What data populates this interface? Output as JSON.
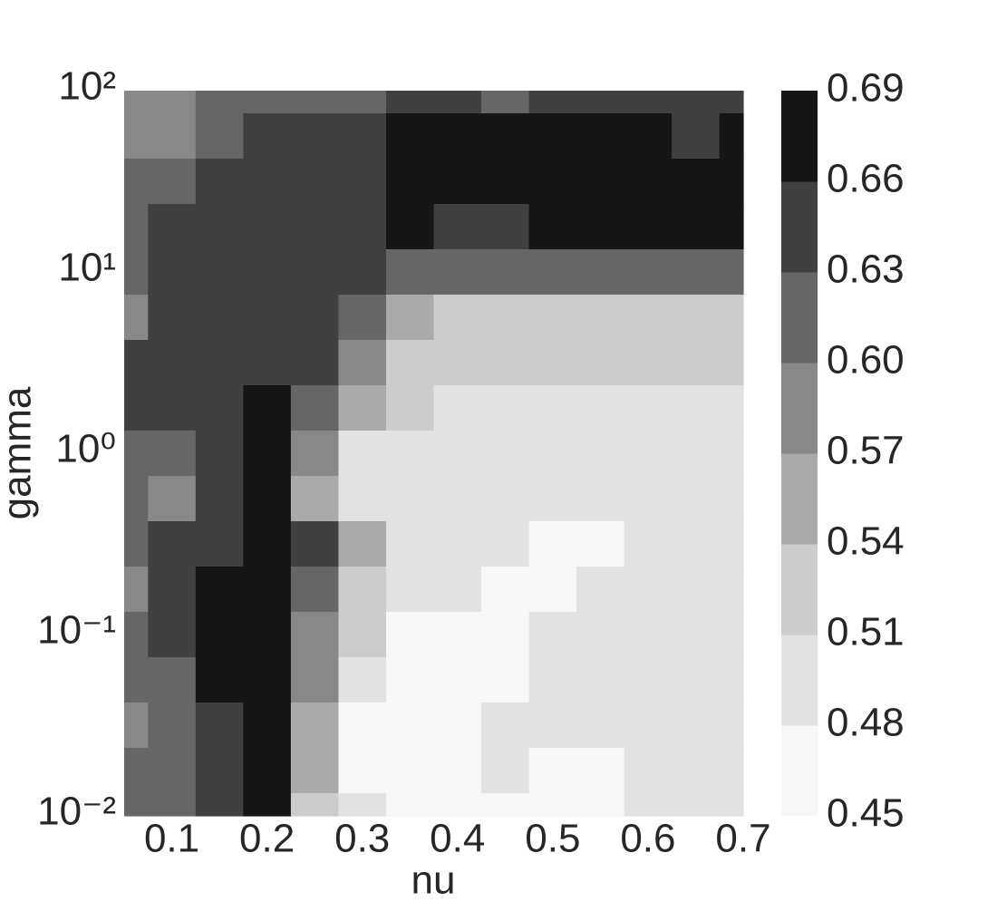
{
  "chart_data": {
    "type": "contourf",
    "xlabel": "nu",
    "ylabel": "gamma",
    "x": [
      0.05,
      0.1,
      0.15,
      0.2,
      0.25,
      0.3,
      0.35,
      0.4,
      0.45,
      0.5,
      0.55,
      0.6,
      0.65,
      0.7
    ],
    "y": [
      100,
      56.23,
      31.62,
      17.78,
      10,
      5.623,
      3.162,
      1.778,
      1,
      0.5623,
      0.3162,
      0.1778,
      0.1,
      0.05623,
      0.03162,
      0.01778,
      0.01
    ],
    "z": [
      [
        0.585,
        0.585,
        0.615,
        0.615,
        0.615,
        0.615,
        0.645,
        0.645,
        0.615,
        0.645,
        0.645,
        0.645,
        0.645,
        0.645
      ],
      [
        0.585,
        0.585,
        0.615,
        0.645,
        0.645,
        0.645,
        0.675,
        0.675,
        0.675,
        0.675,
        0.675,
        0.675,
        0.645,
        0.675
      ],
      [
        0.615,
        0.615,
        0.645,
        0.645,
        0.645,
        0.645,
        0.675,
        0.675,
        0.675,
        0.675,
        0.675,
        0.675,
        0.675,
        0.675
      ],
      [
        0.615,
        0.645,
        0.645,
        0.645,
        0.645,
        0.645,
        0.675,
        0.645,
        0.645,
        0.675,
        0.675,
        0.675,
        0.675,
        0.675
      ],
      [
        0.615,
        0.645,
        0.645,
        0.645,
        0.645,
        0.645,
        0.615,
        0.615,
        0.615,
        0.615,
        0.615,
        0.615,
        0.615,
        0.615
      ],
      [
        0.585,
        0.645,
        0.645,
        0.645,
        0.645,
        0.615,
        0.555,
        0.525,
        0.525,
        0.525,
        0.525,
        0.525,
        0.525,
        0.525
      ],
      [
        0.645,
        0.645,
        0.645,
        0.645,
        0.645,
        0.585,
        0.525,
        0.525,
        0.525,
        0.525,
        0.525,
        0.525,
        0.525,
        0.525
      ],
      [
        0.645,
        0.645,
        0.645,
        0.675,
        0.615,
        0.555,
        0.525,
        0.495,
        0.495,
        0.495,
        0.495,
        0.495,
        0.495,
        0.495
      ],
      [
        0.615,
        0.615,
        0.645,
        0.675,
        0.585,
        0.495,
        0.495,
        0.495,
        0.495,
        0.495,
        0.495,
        0.495,
        0.495,
        0.495
      ],
      [
        0.615,
        0.585,
        0.645,
        0.675,
        0.555,
        0.495,
        0.495,
        0.495,
        0.495,
        0.495,
        0.495,
        0.495,
        0.495,
        0.495
      ],
      [
        0.615,
        0.645,
        0.645,
        0.675,
        0.645,
        0.555,
        0.495,
        0.495,
        0.495,
        0.465,
        0.465,
        0.495,
        0.495,
        0.495
      ],
      [
        0.585,
        0.645,
        0.675,
        0.675,
        0.615,
        0.525,
        0.495,
        0.495,
        0.465,
        0.465,
        0.495,
        0.495,
        0.495,
        0.495
      ],
      [
        0.615,
        0.645,
        0.675,
        0.675,
        0.585,
        0.525,
        0.465,
        0.465,
        0.465,
        0.495,
        0.495,
        0.495,
        0.495,
        0.495
      ],
      [
        0.615,
        0.615,
        0.675,
        0.675,
        0.585,
        0.495,
        0.465,
        0.465,
        0.465,
        0.495,
        0.495,
        0.495,
        0.495,
        0.495
      ],
      [
        0.585,
        0.615,
        0.645,
        0.675,
        0.555,
        0.465,
        0.465,
        0.465,
        0.495,
        0.495,
        0.495,
        0.495,
        0.495,
        0.495
      ],
      [
        0.615,
        0.615,
        0.645,
        0.675,
        0.555,
        0.465,
        0.465,
        0.465,
        0.495,
        0.465,
        0.465,
        0.495,
        0.495,
        0.495
      ],
      [
        0.615,
        0.615,
        0.645,
        0.675,
        0.525,
        0.495,
        0.465,
        0.465,
        0.465,
        0.465,
        0.465,
        0.495,
        0.495,
        0.495
      ]
    ],
    "levels": [
      0.45,
      0.48,
      0.51,
      0.54,
      0.57,
      {
        "value": 0.6,
        "label": "0.60"
      },
      0.63,
      0.66,
      0.69
    ],
    "colors": [
      "#f7f7f7",
      "#e2e2e2",
      "#cccccc",
      "#aaaaaa",
      "#888888",
      "#666666",
      "#404040",
      "#161616"
    ],
    "xlim": [
      0.05,
      0.7
    ],
    "xticks": [
      0.1,
      0.2,
      0.3,
      0.4,
      0.5,
      0.6,
      0.7
    ],
    "ylim": [
      0.01,
      100
    ],
    "yscale": "log",
    "yticks": [
      {
        "value": 0.01,
        "label": "10⁻²"
      },
      {
        "value": 0.1,
        "label": "10⁻¹"
      },
      {
        "value": 1,
        "label": "10⁰"
      },
      {
        "value": 10,
        "label": "10¹"
      },
      {
        "value": 100,
        "label": "10²"
      }
    ]
  }
}
